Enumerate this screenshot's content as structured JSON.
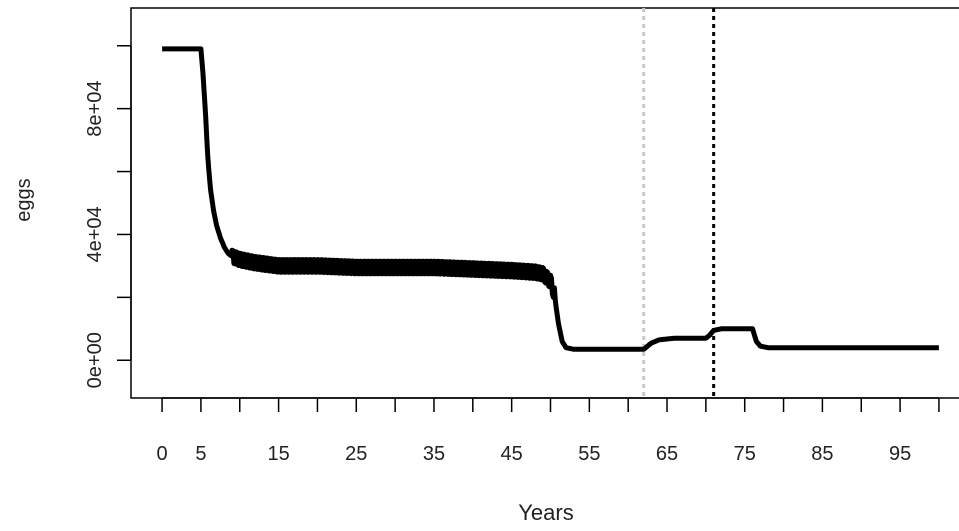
{
  "chart_data": {
    "type": "line",
    "title": "",
    "xlabel": "Years",
    "ylabel": "eggs",
    "xlim": [
      -4,
      104
    ],
    "ylim": [
      -12000,
      112000
    ],
    "x_ticks": [
      0,
      5,
      10,
      15,
      20,
      25,
      30,
      35,
      40,
      45,
      50,
      55,
      60,
      65,
      70,
      75,
      80,
      85,
      90,
      95,
      100
    ],
    "x_tick_labels": [
      {
        "value": 0,
        "label": "0"
      },
      {
        "value": 5,
        "label": "5"
      },
      {
        "value": 15,
        "label": "15"
      },
      {
        "value": 25,
        "label": "25"
      },
      {
        "value": 35,
        "label": "35"
      },
      {
        "value": 45,
        "label": "45"
      },
      {
        "value": 55,
        "label": "55"
      },
      {
        "value": 65,
        "label": "65"
      },
      {
        "value": 75,
        "label": "75"
      },
      {
        "value": 85,
        "label": "85"
      },
      {
        "value": 95,
        "label": "95"
      }
    ],
    "y_ticks": [
      0,
      20000,
      40000,
      60000,
      80000,
      100000
    ],
    "y_tick_labels": [
      {
        "value": 0,
        "label": "0e+00"
      },
      {
        "value": 40000,
        "label": "4e+04"
      },
      {
        "value": 80000,
        "label": "8e+04"
      }
    ],
    "grid": false,
    "legend": "none",
    "series": [
      {
        "color": "#000000",
        "x": [
          0,
          1,
          2,
          3,
          4,
          5,
          5.3,
          5.6,
          5.9,
          6.2,
          6.6,
          7,
          7.5,
          8,
          8.5,
          9,
          10,
          12,
          15,
          20,
          25,
          30,
          35,
          40,
          45,
          48,
          49,
          50,
          50.5,
          51,
          51.5,
          52,
          53,
          55,
          58,
          60,
          61,
          62,
          63,
          64,
          66,
          68,
          70,
          70.5,
          71,
          72,
          73,
          74,
          75,
          76,
          76.5,
          77,
          78,
          80,
          85,
          90,
          95,
          100
        ],
        "y": [
          99000,
          99000,
          99000,
          99000,
          99000,
          99000,
          90000,
          78000,
          64000,
          55000,
          48000,
          43000,
          39000,
          36000,
          34000,
          33000,
          32000,
          31000,
          30000,
          30000,
          29500,
          29500,
          29500,
          29000,
          28500,
          28000,
          27500,
          25000,
          21000,
          12000,
          6000,
          4000,
          3500,
          3500,
          3500,
          3500,
          3500,
          3500,
          5500,
          6500,
          7000,
          7000,
          7000,
          8000,
          9500,
          10000,
          10000,
          10000,
          10000,
          10000,
          6000,
          4500,
          4000,
          4000,
          4000,
          4000,
          4000,
          4000
        ],
        "oscillation": {
          "x_start": 9,
          "x_end": 50.5,
          "period_years": 0.5,
          "amplitude": 4000
        }
      }
    ],
    "reference_lines": [
      {
        "x": 62,
        "color": "#c8c8c8",
        "style": "dotted"
      },
      {
        "x": 71,
        "color": "#000000",
        "style": "dotted"
      }
    ]
  }
}
